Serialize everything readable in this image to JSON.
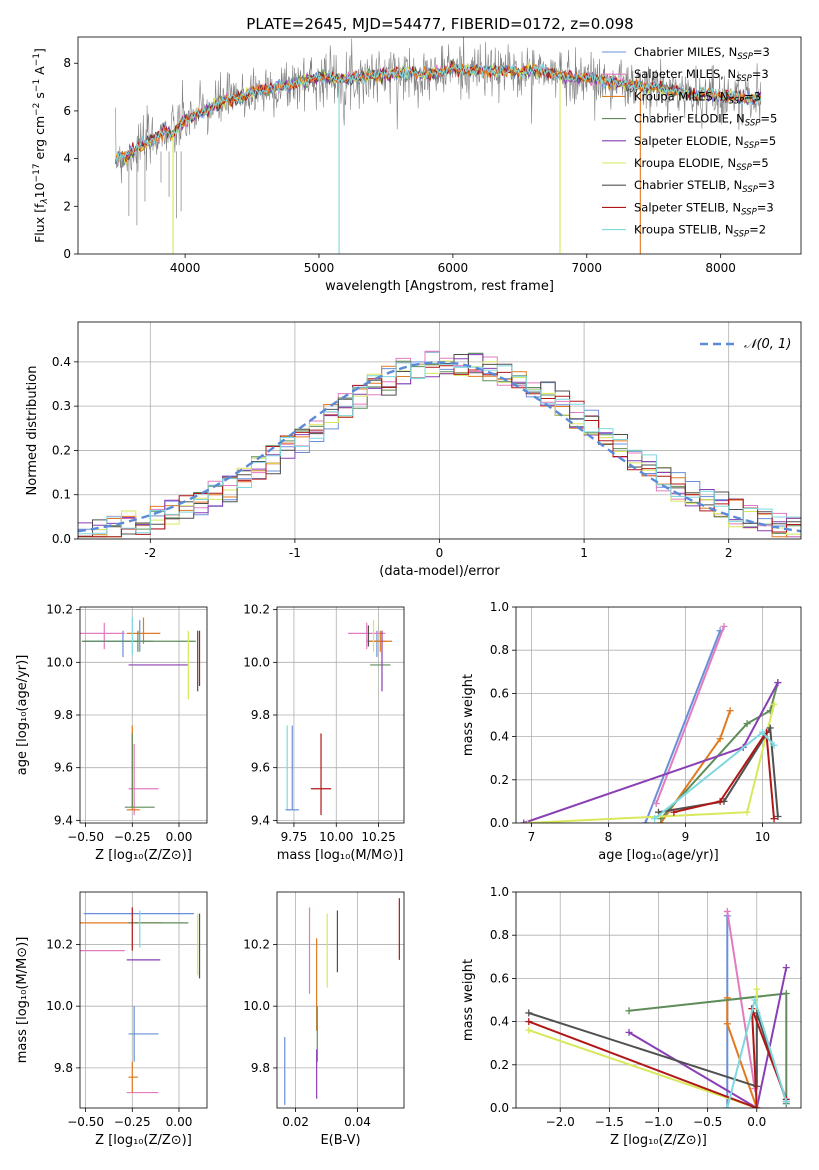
{
  "title": "PLATE=2645, MJD=54477, FIBERID=0172, z=0.098",
  "legend_colors": [
    "#6a8fd8",
    "#e27bc0",
    "#e07a20",
    "#5f8d5a",
    "#8a3fb5",
    "#d8e85a",
    "#505050",
    "#b01818",
    "#7fd8e0"
  ],
  "chart_data": [
    {
      "type": "line",
      "name": "spectrum",
      "xlabel": "wavelength [Angstrom, rest frame]",
      "ylabel": "Flux [f_λ 10^-17 erg cm^-2 s^-1 A^-1]",
      "xlim": [
        3200,
        8600
      ],
      "ylim": [
        0,
        9.1
      ],
      "xticks": [
        4000,
        5000,
        6000,
        7000,
        8000
      ],
      "yticks": [
        0,
        2,
        4,
        6,
        8
      ],
      "grid": false,
      "legend_position": "right",
      "data": {
        "x": [
          3480,
          3520,
          3560,
          3600,
          3650,
          3700,
          3750,
          3800,
          3850,
          3900,
          3950,
          4000,
          4100,
          4200,
          4300,
          4400,
          4500,
          4600,
          4700,
          4800,
          4900,
          5000,
          5100,
          5200,
          5300,
          5400,
          5500,
          5600,
          5700,
          5800,
          5900,
          6000,
          6100,
          6200,
          6300,
          6400,
          6500,
          6600,
          6700,
          6800,
          6900,
          7000,
          7100,
          7200,
          7300,
          7400,
          7500,
          7600,
          7700,
          7800,
          7900,
          8000,
          8100,
          8200,
          8300
        ],
        "y": [
          4.0,
          4.1,
          4.0,
          4.3,
          4.5,
          4.6,
          4.7,
          5.0,
          5.2,
          5.0,
          5.3,
          5.6,
          5.9,
          6.1,
          6.5,
          6.5,
          6.8,
          6.9,
          7.0,
          7.1,
          7.3,
          7.4,
          7.4,
          7.3,
          7.4,
          7.5,
          7.5,
          7.6,
          7.6,
          7.5,
          7.6,
          7.8,
          7.7,
          7.7,
          7.6,
          7.7,
          7.6,
          7.7,
          7.6,
          7.5,
          7.4,
          7.4,
          7.3,
          7.2,
          7.1,
          7.0,
          7.0,
          6.9,
          6.8,
          6.7,
          6.7,
          6.6,
          6.6,
          6.5,
          6.5
        ]
      },
      "series": [
        {
          "name": "Chabrier MILES, N_SSP=3"
        },
        {
          "name": "Salpeter MILES, N_SSP=3"
        },
        {
          "name": "Kroupa MILES, N_SSP=3"
        },
        {
          "name": "Chabrier ELODIE, N_SSP=5"
        },
        {
          "name": "Salpeter ELODIE, N_SSP=5"
        },
        {
          "name": "Kroupa ELODIE, N_SSP=5"
        },
        {
          "name": "Chabrier STELIB, N_SSP=3"
        },
        {
          "name": "Salpeter STELIB, N_SSP=3"
        },
        {
          "name": "Kroupa STELIB, N_SSP=2"
        }
      ]
    },
    {
      "type": "line",
      "name": "residuals",
      "xlabel": "(data-model)/error",
      "ylabel": "Normed distribution",
      "xlim": [
        -2.5,
        2.5
      ],
      "ylim": [
        0,
        0.49
      ],
      "xticks": [
        -2,
        -1,
        0,
        1,
        2
      ],
      "yticks": [
        0.0,
        0.1,
        0.2,
        0.3,
        0.4
      ],
      "grid": true,
      "legend_position": "top-right",
      "reference": {
        "name": "N(0,1)",
        "mean": 0,
        "sigma": 1
      }
    },
    {
      "type": "scatter",
      "name": "age-vs-Z",
      "xlabel": "Z [log10(Z/Z⊙)]",
      "ylabel": "age [log10(age/yr)]",
      "xlim": [
        -0.53,
        0.15
      ],
      "ylim": [
        9.39,
        10.21
      ],
      "xticks": [
        -0.5,
        -0.25,
        0.0
      ],
      "yticks": [
        9.4,
        9.6,
        9.8,
        10.0,
        10.2
      ],
      "grid": true,
      "points": [
        {
          "x": -0.3,
          "xerr": [
            0.21,
            0.16
          ],
          "y": 10.08,
          "yerr": [
            0.06,
            0.04
          ]
        },
        {
          "x": -0.4,
          "xerr": [
            0.14,
            0.11
          ],
          "y": 10.11,
          "yerr": [
            0.06,
            0.04
          ]
        },
        {
          "x": -0.19,
          "xerr": [
            0.09,
            0.09
          ],
          "y": 10.11,
          "yerr": [
            0.04,
            0.06
          ]
        },
        {
          "x": -0.22,
          "xerr": [
            0.3,
            0.31
          ],
          "y": 10.08,
          "yerr": [
            0.04,
            0.04
          ]
        },
        {
          "x": -0.15,
          "xerr": [
            0.12,
            0.2
          ],
          "y": 9.99,
          "yerr": [
            0.0,
            0.0
          ]
        },
        {
          "x": 0.05,
          "xerr": [
            0.0,
            0.0
          ],
          "y": 9.99,
          "yerr": [
            0.13,
            0.13
          ]
        },
        {
          "x": 0.1,
          "xerr": [
            0.0,
            0.0
          ],
          "y": 10.02,
          "yerr": [
            0.13,
            0.1
          ]
        },
        {
          "x": 0.11,
          "xerr": [
            0.0,
            0.0
          ],
          "y": 10.02,
          "yerr": [
            0.11,
            0.1
          ]
        },
        {
          "x": -0.25,
          "xerr": [
            0.0,
            0.0
          ],
          "y": 10.1,
          "yerr": [
            0.07,
            0.07
          ]
        },
        {
          "x": -0.21,
          "xerr": [
            0.0,
            0.0
          ],
          "y": 10.1,
          "yerr": [
            0.06,
            0.06
          ]
        },
        {
          "x": -0.24,
          "xerr": [
            0.03,
            0.13
          ],
          "y": 9.52,
          "yerr": [
            0.1,
            0.17
          ]
        },
        {
          "x": -0.25,
          "xerr": [
            0.03,
            0.04
          ],
          "y": 9.44,
          "yerr": [
            0.0,
            0.32
          ]
        },
        {
          "x": -0.25,
          "xerr": [
            0.04,
            0.12
          ],
          "y": 9.45,
          "yerr": [
            0.0,
            0.28
          ]
        }
      ]
    },
    {
      "type": "scatter",
      "name": "age-vs-mass",
      "xlabel": "mass [log10(M/M⊙)]",
      "ylabel": "",
      "xlim": [
        9.65,
        10.4
      ],
      "ylim": [
        9.39,
        10.21
      ],
      "xticks": [
        9.75,
        10.0,
        10.25
      ],
      "yticks": [
        9.4,
        9.6,
        9.8,
        10.0,
        10.2
      ],
      "grid": true,
      "points": [
        {
          "x": 10.24,
          "xerr": [
            0.06,
            0.05
          ],
          "y": 10.08,
          "yerr": [
            0.06,
            0.04
          ]
        },
        {
          "x": 10.18,
          "xerr": [
            0.11,
            0.11
          ],
          "y": 10.11,
          "yerr": [
            0.06,
            0.04
          ]
        },
        {
          "x": 10.26,
          "xerr": [
            0.07,
            0.07
          ],
          "y": 10.08,
          "yerr": [
            0.04,
            0.04
          ]
        },
        {
          "x": 10.3,
          "xerr": [
            0.1,
            0.02
          ],
          "y": 9.99,
          "yerr": [
            0.0,
            0.0
          ]
        },
        {
          "x": 10.27,
          "xerr": [
            0.0,
            0.0
          ],
          "y": 10.02,
          "yerr": [
            0.13,
            0.1
          ]
        },
        {
          "x": 10.22,
          "xerr": [
            0.0,
            0.0
          ],
          "y": 10.1,
          "yerr": [
            0.06,
            0.06
          ]
        },
        {
          "x": 10.19,
          "xerr": [
            0.0,
            0.0
          ],
          "y": 10.1,
          "yerr": [
            0.04,
            0.04
          ]
        },
        {
          "x": 9.91,
          "xerr": [
            0.06,
            0.06
          ],
          "y": 9.52,
          "yerr": [
            0.1,
            0.21
          ]
        },
        {
          "x": 9.71,
          "xerr": [
            0.0,
            0.02
          ],
          "y": 9.44,
          "yerr": [
            0.0,
            0.32
          ]
        },
        {
          "x": 9.74,
          "xerr": [
            0.04,
            0.04
          ],
          "y": 9.44,
          "yerr": [
            0.0,
            0.32
          ]
        }
      ]
    },
    {
      "type": "line",
      "name": "mass-weight-vs-age",
      "xlabel": "age [log10(age/yr)]",
      "ylabel": "mass weight",
      "xlim": [
        6.8,
        10.5
      ],
      "ylim": [
        0,
        1.0
      ],
      "xticks": [
        7,
        8,
        9,
        10
      ],
      "yticks": [
        0.0,
        0.2,
        0.4,
        0.6,
        0.8,
        1.0
      ],
      "grid": true,
      "series": [
        {
          "x": [
            8.48,
            9.45
          ],
          "y": [
            0.0,
            0.89
          ]
        },
        {
          "x": [
            8.62,
            9.5
          ],
          "y": [
            0.09,
            0.91
          ]
        },
        {
          "x": [
            8.68,
            9.45,
            9.58
          ],
          "y": [
            0.0,
            0.39,
            0.52
          ]
        },
        {
          "x": [
            8.68,
            9.8,
            10.1,
            10.2
          ],
          "y": [
            0.02,
            0.46,
            0.52,
            0.65
          ]
        },
        {
          "x": [
            6.9,
            9.75,
            10.2
          ],
          "y": [
            0.0,
            0.35,
            0.65
          ]
        },
        {
          "x": [
            6.95,
            9.8,
            10.15
          ],
          "y": [
            0.0,
            0.05,
            0.55
          ]
        },
        {
          "x": [
            8.65,
            9.5,
            10.1,
            10.2
          ],
          "y": [
            0.05,
            0.1,
            0.44,
            0.03
          ]
        },
        {
          "x": [
            8.85,
            9.45,
            10.05,
            10.15
          ],
          "y": [
            0.05,
            0.1,
            0.42,
            0.02
          ]
        },
        {
          "x": [
            8.6,
            10.0,
            10.15
          ],
          "y": [
            0.02,
            0.42,
            0.36
          ]
        }
      ]
    },
    {
      "type": "scatter",
      "name": "mass-vs-Z",
      "xlabel": "Z [log10(Z/Z⊙)]",
      "ylabel": "mass [log10(M/M⊙)]",
      "xlim": [
        -0.53,
        0.15
      ],
      "ylim": [
        9.67,
        10.37
      ],
      "xticks": [
        -0.5,
        -0.25,
        0.0
      ],
      "yticks": [
        9.8,
        10.0,
        10.2
      ],
      "grid": true,
      "points": [
        {
          "x": -0.3,
          "xerr": [
            0.21,
            0.38
          ],
          "y": 10.3,
          "yerr": [
            0.0,
            0.0
          ]
        },
        {
          "x": -0.4,
          "xerr": [
            0.14,
            0.11
          ],
          "y": 10.18,
          "yerr": [
            0.0,
            0.0
          ]
        },
        {
          "x": -0.22,
          "xerr": [
            0.31,
            0.13
          ],
          "y": 10.27,
          "yerr": [
            0.0,
            0.0
          ]
        },
        {
          "x": -0.15,
          "xerr": [
            0.12,
            0.2
          ],
          "y": 10.27,
          "yerr": [
            0.0,
            0.0
          ]
        },
        {
          "x": -0.19,
          "xerr": [
            0.09,
            0.09
          ],
          "y": 10.15,
          "yerr": [
            0.0,
            0.0
          ]
        },
        {
          "x": 0.1,
          "xerr": [
            0.0,
            0.0
          ],
          "y": 10.2,
          "yerr": [
            0.1,
            0.1
          ]
        },
        {
          "x": 0.11,
          "xerr": [
            0.0,
            0.0
          ],
          "y": 10.2,
          "yerr": [
            0.11,
            0.1
          ]
        },
        {
          "x": -0.25,
          "xerr": [
            0.0,
            0.0
          ],
          "y": 10.25,
          "yerr": [
            0.07,
            0.07
          ]
        },
        {
          "x": -0.21,
          "xerr": [
            0.0,
            0.0
          ],
          "y": 10.25,
          "yerr": [
            0.06,
            0.06
          ]
        },
        {
          "x": -0.24,
          "xerr": [
            0.03,
            0.13
          ],
          "y": 9.91,
          "yerr": [
            0.09,
            0.09
          ]
        },
        {
          "x": -0.25,
          "xerr": [
            0.03,
            0.14
          ],
          "y": 9.72,
          "yerr": [
            0.0,
            0.0
          ]
        },
        {
          "x": -0.25,
          "xerr": [
            0.02,
            0.03
          ],
          "y": 9.77,
          "yerr": [
            0.05,
            0.05
          ]
        }
      ]
    },
    {
      "type": "scatter",
      "name": "mass-vs-EBV",
      "xlabel": "E(B-V)",
      "ylabel": "",
      "xlim": [
        0.014,
        0.055
      ],
      "ylim": [
        9.67,
        10.37
      ],
      "xticks": [
        0.02,
        0.04
      ],
      "yticks": [
        9.8,
        10.0,
        10.2
      ],
      "grid": true,
      "points": [
        {
          "x": 0.0165,
          "y": 9.79,
          "yerr": [
            0.11,
            0.11
          ]
        },
        {
          "x": 0.0245,
          "y": 10.18,
          "yerr": [
            0.14,
            0.14
          ]
        },
        {
          "x": 0.0268,
          "y": 10.07,
          "yerr": [
            0.15,
            0.15
          ]
        },
        {
          "x": 0.027,
          "y": 9.91,
          "yerr": [
            0.09,
            0.09
          ]
        },
        {
          "x": 0.0268,
          "y": 9.78,
          "yerr": [
            0.08,
            0.08
          ]
        },
        {
          "x": 0.0302,
          "y": 10.18,
          "yerr": [
            0.12,
            0.12
          ]
        },
        {
          "x": 0.0335,
          "y": 10.21,
          "yerr": [
            0.1,
            0.1
          ]
        },
        {
          "x": 0.0535,
          "y": 10.25,
          "yerr": [
            0.1,
            0.1
          ]
        }
      ]
    },
    {
      "type": "line",
      "name": "mass-weight-vs-Z",
      "xlabel": "Z [log10(Z/Z⊙)]",
      "ylabel": "mass weight",
      "xlim": [
        -2.45,
        0.45
      ],
      "ylim": [
        0,
        1.0
      ],
      "xticks": [
        -2.0,
        -1.5,
        -1.0,
        -0.5,
        0.0
      ],
      "yticks": [
        0.0,
        0.2,
        0.4,
        0.6,
        0.8,
        1.0
      ],
      "grid": true,
      "series": [
        {
          "x": [
            -0.3,
            -0.3
          ],
          "y": [
            0.0,
            0.89
          ]
        },
        {
          "x": [
            -0.3,
            -0.02
          ],
          "y": [
            0.91,
            0.09
          ]
        },
        {
          "x": [
            -0.3,
            -0.3,
            0.0
          ],
          "y": [
            0.51,
            0.39,
            0.0
          ]
        },
        {
          "x": [
            -1.3,
            0.3,
            0.3
          ],
          "y": [
            0.45,
            0.53,
            0.02
          ]
        },
        {
          "x": [
            -1.3,
            0.0,
            0.3
          ],
          "y": [
            0.35,
            0.0,
            0.65
          ]
        },
        {
          "x": [
            -2.32,
            0.0,
            0.0
          ],
          "y": [
            0.36,
            0.0,
            0.55
          ]
        },
        {
          "x": [
            -2.32,
            0.0,
            0.0,
            0.3
          ],
          "y": [
            0.44,
            0.1,
            0.44,
            0.03
          ]
        },
        {
          "x": [
            -2.32,
            0.0,
            -0.05,
            0.3
          ],
          "y": [
            0.4,
            0.0,
            0.46,
            0.04
          ]
        },
        {
          "x": [
            -0.3,
            -0.02,
            0.3
          ],
          "y": [
            0.0,
            0.5,
            0.03
          ]
        }
      ]
    }
  ]
}
